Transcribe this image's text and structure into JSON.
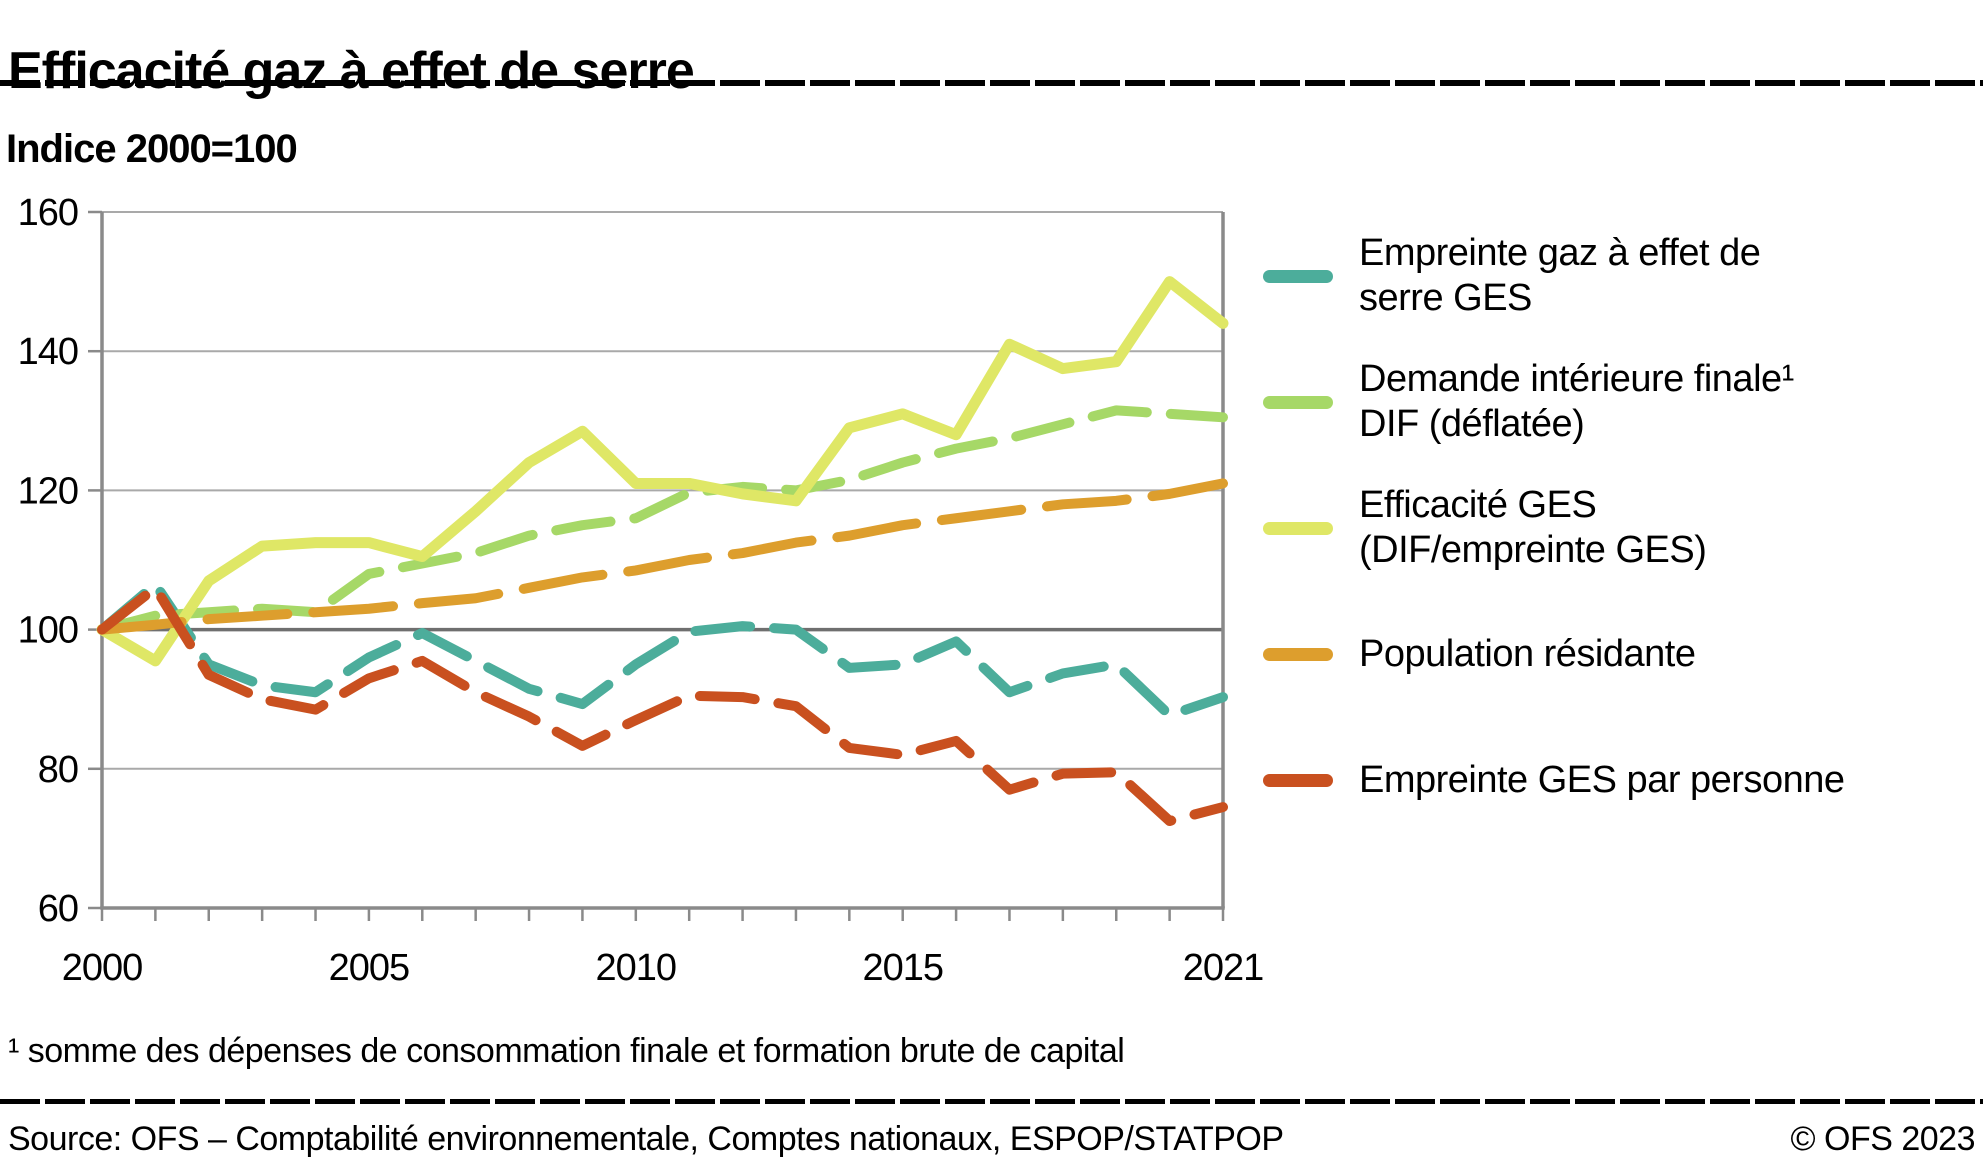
{
  "page": {
    "title": "Efficacité gaz à effet de serre",
    "subtitle": "Indice 2000=100",
    "footnote": "¹ somme des dépenses de consommation finale et formation brute de capital",
    "source": "Source: OFS – Comptabilité environnementale, Comptes nationaux, ESPOP/STATPOP",
    "copyright": "© OFS 2023"
  },
  "chart_data": {
    "type": "line",
    "title": "Efficacité gaz à effet de serre",
    "ylabel": "Indice 2000=100",
    "xlim": [
      2000,
      2021
    ],
    "ylim": [
      60,
      160
    ],
    "baseline": 100,
    "grid": "horizontal",
    "legend_position": "right",
    "x": [
      2000,
      2001,
      2002,
      2003,
      2004,
      2005,
      2006,
      2007,
      2008,
      2009,
      2010,
      2011,
      2012,
      2013,
      2014,
      2015,
      2016,
      2017,
      2018,
      2019,
      2020,
      2021
    ],
    "xticks": [
      {
        "value": 2000,
        "label": "2000"
      },
      {
        "value": 2005,
        "label": "2005"
      },
      {
        "value": 2010,
        "label": "2010"
      },
      {
        "value": 2015,
        "label": "2015"
      },
      {
        "value": 2021,
        "label": "2021"
      }
    ],
    "yticks": [
      60,
      80,
      100,
      120,
      140,
      160
    ],
    "series": [
      {
        "name": "empreinte-ges",
        "label": "Empreinte gaz à effet de serre GES",
        "color": "#4cad9b",
        "style": "dashed",
        "values": [
          100,
          106.5,
          95,
          92,
          91,
          96,
          99.5,
          95.5,
          91.5,
          89.3,
          95,
          99.7,
          100.5,
          100,
          94.5,
          95,
          98.3,
          91,
          93.7,
          95,
          87.7,
          90.3
        ]
      },
      {
        "name": "demande-interieure-finale-dif",
        "label": "Demande intérieure finale¹ DIF (déflatée)",
        "color": "#a6d867",
        "style": "dashed",
        "values": [
          100,
          102,
          102.5,
          103,
          102.5,
          108,
          109.5,
          111,
          113.5,
          115,
          116,
          119.7,
          120.5,
          120,
          121.5,
          124,
          126,
          127.5,
          129.5,
          131.5,
          131,
          130.5
        ]
      },
      {
        "name": "efficacite-ges",
        "label": "Efficacité GES (DIF/empreinte GES)",
        "color": "#dfe766",
        "style": "solid",
        "values": [
          100,
          95.5,
          107,
          112,
          112.5,
          112.5,
          110.5,
          117,
          124,
          128.5,
          121,
          121,
          119.5,
          118.5,
          129,
          131,
          128,
          141,
          137.5,
          138.5,
          150,
          144
        ]
      },
      {
        "name": "population-residante",
        "label": "Population résidante",
        "color": "#dd9e2d",
        "style": "dashed-long",
        "values": [
          100,
          100.7,
          101.5,
          102,
          102.5,
          103,
          103.8,
          104.5,
          106,
          107.5,
          108.5,
          110,
          111,
          112.5,
          113.5,
          115,
          116,
          117,
          118,
          118.5,
          119.5,
          121
        ]
      },
      {
        "name": "empreinte-ges-par-personne",
        "label": "Empreinte GES par personne",
        "color": "#c9501f",
        "style": "dashed",
        "values": [
          100,
          106,
          93.5,
          90,
          88.5,
          93,
          95.5,
          91,
          87.5,
          83.3,
          87,
          90.5,
          90.3,
          89,
          83,
          82,
          84,
          77,
          79.3,
          79.5,
          72.5,
          74.5
        ]
      }
    ]
  }
}
